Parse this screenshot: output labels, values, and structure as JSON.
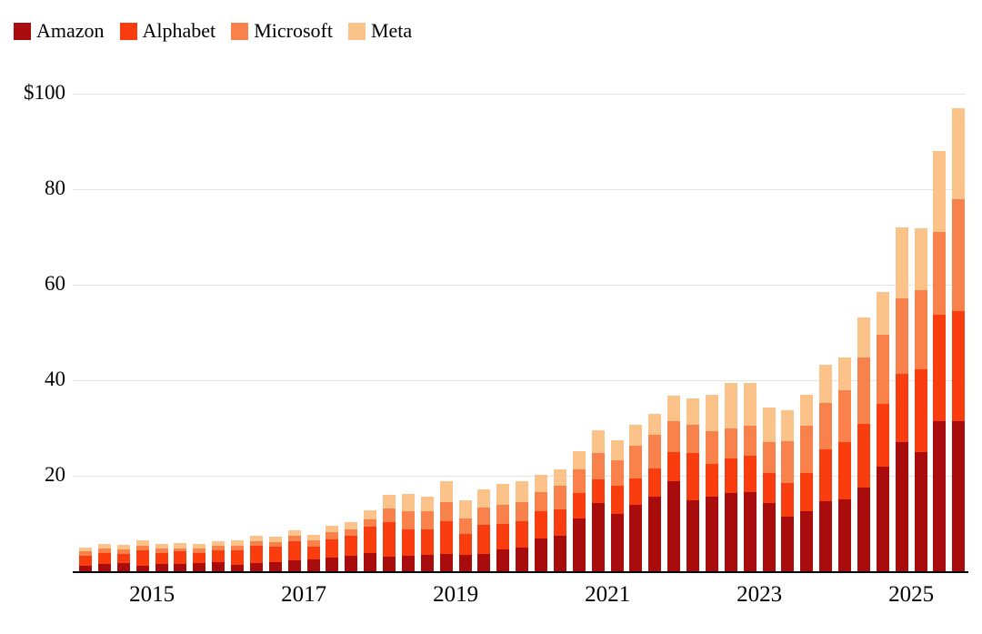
{
  "colors": {
    "background": "#ffffff",
    "gridline": "#e5e5e5",
    "axis_line": "#000000",
    "text": "#000000",
    "amazon": "#a90c0d",
    "alphabet": "#f93d0e",
    "microsoft": "#f9814b",
    "meta": "#fbc289"
  },
  "legend": {
    "items": [
      {
        "label": "Amazon",
        "color": "#a90c0d",
        "icon": "legend-swatch-amazon"
      },
      {
        "label": "Alphabet",
        "color": "#f93d0e",
        "icon": "legend-swatch-alphabet"
      },
      {
        "label": "Microsoft",
        "color": "#f9814b",
        "icon": "legend-swatch-microsoft"
      },
      {
        "label": "Meta",
        "color": "#fbc289",
        "icon": "legend-swatch-meta"
      }
    ]
  },
  "chart_data": {
    "type": "bar",
    "stacked": true,
    "title": "",
    "xlabel": "",
    "ylabel": "",
    "grid": "horizontal",
    "legend_position": "top-left",
    "ylim": [
      0,
      100
    ],
    "y_ticks": [
      {
        "value": 100,
        "label": "$100"
      },
      {
        "value": 80,
        "label": "80"
      },
      {
        "value": 60,
        "label": "60"
      },
      {
        "value": 40,
        "label": "40"
      },
      {
        "value": 20,
        "label": "20"
      }
    ],
    "x_ticks": [
      {
        "year": 2015,
        "label": "2015"
      },
      {
        "year": 2017,
        "label": "2017"
      },
      {
        "year": 2019,
        "label": "2019"
      },
      {
        "year": 2021,
        "label": "2021"
      },
      {
        "year": 2023,
        "label": "2023"
      },
      {
        "year": 2025,
        "label": "2025"
      }
    ],
    "first_quarter": {
      "year": 2014,
      "quarter": 1
    },
    "categories": [
      "Q1 2014",
      "Q2 2014",
      "Q3 2014",
      "Q4 2014",
      "Q1 2015",
      "Q2 2015",
      "Q3 2015",
      "Q4 2015",
      "Q1 2016",
      "Q2 2016",
      "Q3 2016",
      "Q4 2016",
      "Q1 2017",
      "Q2 2017",
      "Q3 2017",
      "Q4 2017",
      "Q1 2018",
      "Q2 2018",
      "Q3 2018",
      "Q4 2018",
      "Q1 2019",
      "Q2 2019",
      "Q3 2019",
      "Q4 2019",
      "Q1 2020",
      "Q2 2020",
      "Q3 2020",
      "Q4 2020",
      "Q1 2021",
      "Q2 2021",
      "Q3 2021",
      "Q4 2021",
      "Q1 2022",
      "Q2 2022",
      "Q3 2022",
      "Q4 2022",
      "Q1 2023",
      "Q2 2023",
      "Q3 2023",
      "Q4 2023",
      "Q1 2024",
      "Q2 2024",
      "Q3 2024",
      "Q4 2024",
      "Q1 2025",
      "Q2 2025",
      "Q3 2025"
    ],
    "series": [
      {
        "name": "Amazon",
        "color": "#a90c0d",
        "values": [
          1.1,
          1.5,
          1.7,
          1.2,
          1.5,
          1.6,
          1.7,
          1.9,
          1.4,
          1.7,
          1.9,
          2.2,
          2.5,
          2.9,
          3.2,
          3.8,
          3.0,
          3.2,
          3.4,
          3.7,
          3.4,
          3.6,
          4.5,
          4.9,
          6.8,
          7.5,
          11.0,
          14.3,
          12.0,
          14.0,
          15.6,
          18.9,
          14.9,
          15.7,
          16.4,
          16.6,
          14.2,
          11.5,
          12.5,
          14.6,
          15.0,
          17.6,
          22.0,
          27.0,
          25.0,
          31.5,
          31.5
        ]
      },
      {
        "name": "Alphabet",
        "color": "#f93d0e",
        "values": [
          2.1,
          2.4,
          1.9,
          3.2,
          2.3,
          2.5,
          2.1,
          2.5,
          3.0,
          3.6,
          3.2,
          4.0,
          2.7,
          3.7,
          4.2,
          5.5,
          7.3,
          5.5,
          5.3,
          6.8,
          4.5,
          6.1,
          5.4,
          5.5,
          5.8,
          5.4,
          5.4,
          5.0,
          5.9,
          5.5,
          6.0,
          6.0,
          9.8,
          6.8,
          7.3,
          7.6,
          6.3,
          6.9,
          8.1,
          11.0,
          12.0,
          13.2,
          13.0,
          14.3,
          17.2,
          22.3,
          23.0
        ]
      },
      {
        "name": "Microsoft",
        "color": "#f9814b",
        "values": [
          0.9,
          0.9,
          0.9,
          1.0,
          0.9,
          0.7,
          0.9,
          0.9,
          1.0,
          1.0,
          1.0,
          1.2,
          1.3,
          1.5,
          1.4,
          1.6,
          2.9,
          3.9,
          3.8,
          3.9,
          3.2,
          3.7,
          4.0,
          4.1,
          4.0,
          5.0,
          5.0,
          5.5,
          5.3,
          6.7,
          6.9,
          6.5,
          5.9,
          6.9,
          6.3,
          6.3,
          6.6,
          8.9,
          9.9,
          9.7,
          11.0,
          13.9,
          14.5,
          15.9,
          16.7,
          17.2,
          23.5
        ]
      },
      {
        "name": "Meta",
        "color": "#fbc289",
        "values": [
          0.9,
          0.9,
          1.0,
          1.1,
          1.0,
          1.1,
          1.0,
          1.0,
          1.1,
          1.2,
          1.2,
          1.2,
          1.2,
          1.4,
          1.5,
          1.9,
          2.8,
          3.5,
          3.2,
          4.4,
          3.7,
          3.8,
          4.3,
          4.4,
          3.5,
          3.4,
          3.7,
          4.7,
          4.3,
          4.5,
          4.5,
          5.3,
          5.5,
          7.6,
          9.4,
          9.0,
          7.1,
          6.4,
          6.5,
          7.9,
          6.7,
          8.5,
          9.0,
          14.8,
          12.9,
          17.0,
          19.0
        ]
      }
    ]
  }
}
